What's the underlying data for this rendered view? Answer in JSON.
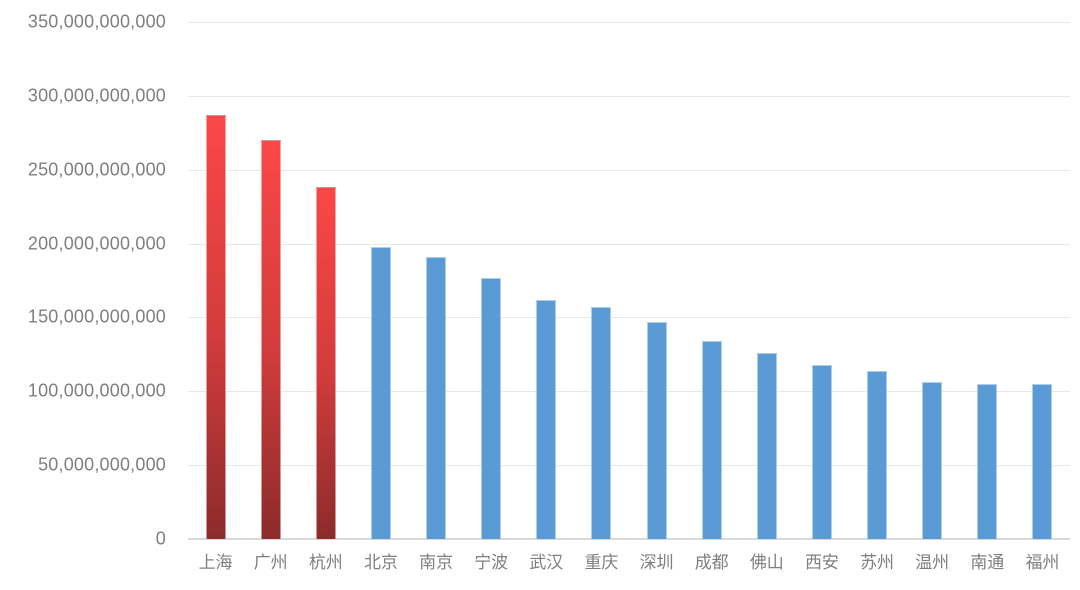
{
  "chart_data": {
    "type": "bar",
    "title": "",
    "xlabel": "",
    "ylabel": "",
    "categories": [
      "上海",
      "广州",
      "杭州",
      "北京",
      "南京",
      "宁波",
      "武汉",
      "重庆",
      "深圳",
      "成都",
      "佛山",
      "西安",
      "苏州",
      "温州",
      "南通",
      "福州"
    ],
    "values": [
      287000000000,
      270000000000,
      238000000000,
      198000000000,
      191000000000,
      177000000000,
      162000000000,
      157000000000,
      147000000000,
      134000000000,
      126000000000,
      118000000000,
      114000000000,
      106000000000,
      105000000000,
      105000000000
    ],
    "highlight_indices": [
      0,
      1,
      2
    ],
    "ylim": [
      0,
      350000000000
    ],
    "ytick_step": 50000000000,
    "yticks": [
      350000000000,
      300000000000,
      250000000000,
      200000000000,
      150000000000,
      100000000000,
      50000000000,
      0
    ],
    "grid": true,
    "legend": false,
    "colors": {
      "bar_blue": "#5b9bd5",
      "bar_red_top": "#fb4747",
      "bar_red_mid": "#d23c3c",
      "bar_red_bottom": "#8c2b2b",
      "gridline": "#e8e8e8",
      "axis_line": "#d9d9d9",
      "tick_label": "#7f7f7f",
      "background": "#ffffff"
    }
  }
}
